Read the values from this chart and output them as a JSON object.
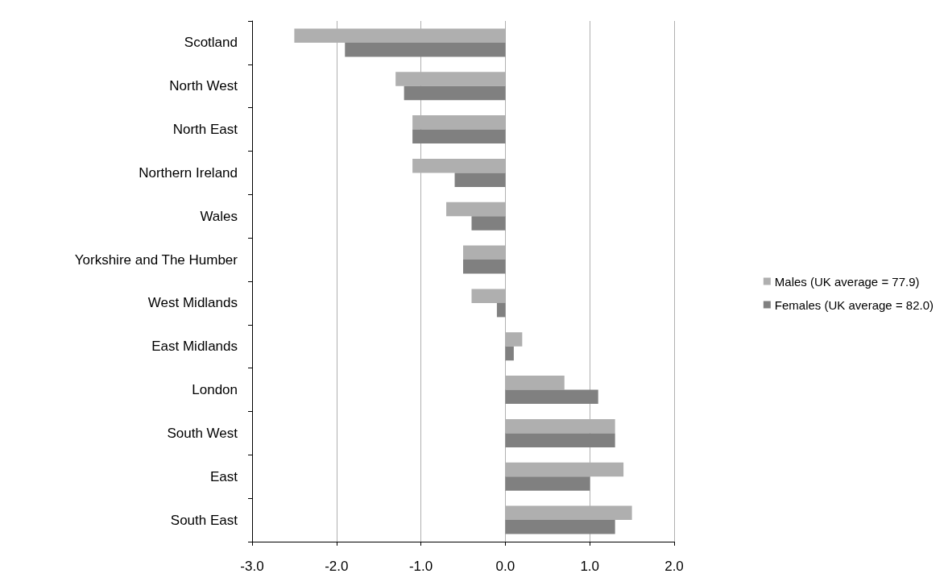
{
  "chart_data": {
    "type": "bar",
    "orientation": "horizontal",
    "categories": [
      "Scotland",
      "North West",
      "North East",
      "Northern Ireland",
      "Wales",
      "Yorkshire and The Humber",
      "West Midlands",
      "East Midlands",
      "London",
      "South West",
      "East",
      "South East"
    ],
    "series": [
      {
        "name": "Males (UK average = 77.9)",
        "color": "#afafaf",
        "values": [
          -2.5,
          -1.3,
          -1.1,
          -1.1,
          -0.7,
          -0.5,
          -0.4,
          0.2,
          0.7,
          1.3,
          1.4,
          1.5
        ]
      },
      {
        "name": "Females (UK average = 82.0)",
        "color": "#808080",
        "values": [
          -1.9,
          -1.2,
          -1.1,
          -0.6,
          -0.4,
          -0.5,
          -0.1,
          0.1,
          1.1,
          1.3,
          1.0,
          1.3
        ]
      }
    ],
    "xlim": [
      -3,
      2
    ],
    "xticks": [
      {
        "value": -3,
        "label": "-3.0"
      },
      {
        "value": -2,
        "label": "-2.0"
      },
      {
        "value": -1,
        "label": "-1.0"
      },
      {
        "value": 0,
        "label": "0.0"
      },
      {
        "value": 1,
        "label": "1.0"
      },
      {
        "value": 2,
        "label": "2.0"
      }
    ],
    "grid": "x",
    "legend": "right"
  }
}
